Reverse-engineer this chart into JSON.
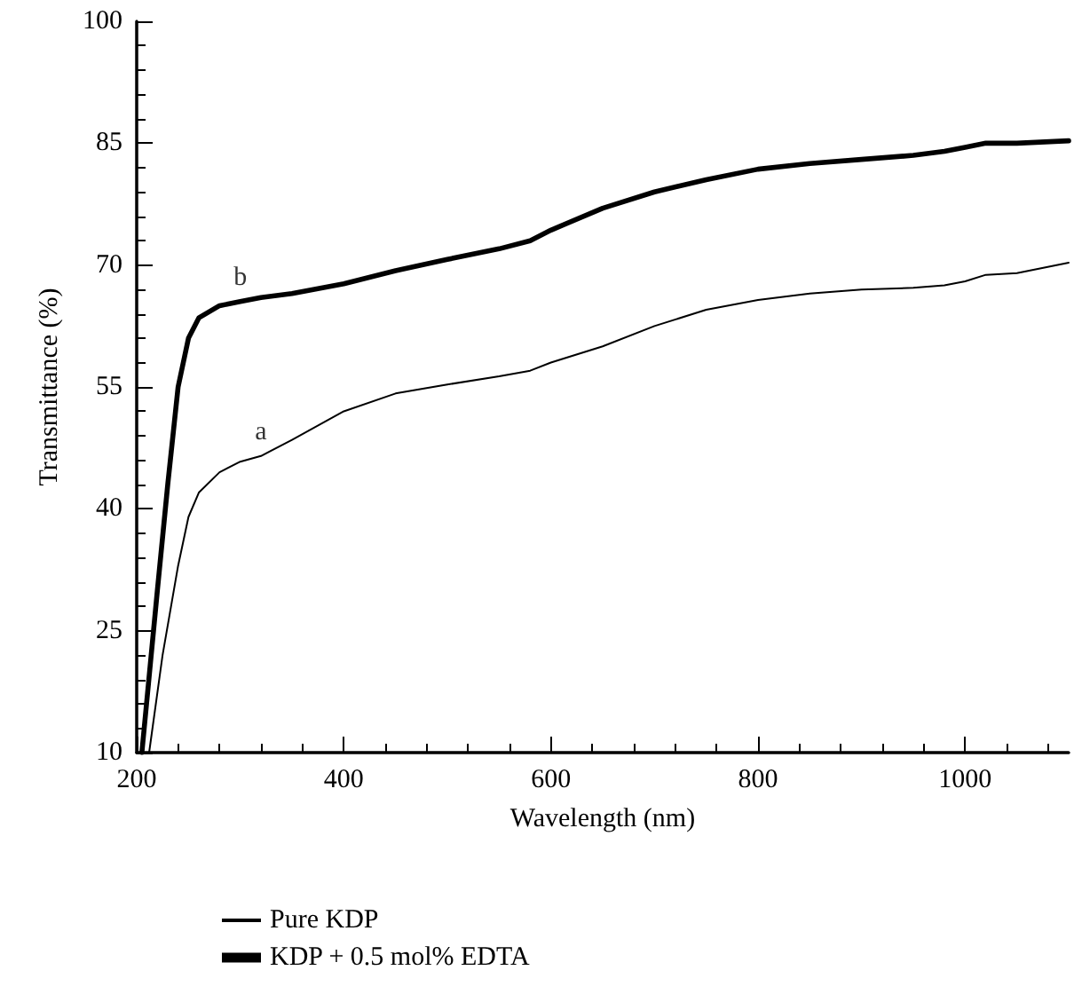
{
  "chart_data": {
    "type": "line",
    "xlabel": "Wavelength (nm)",
    "ylabel": "Transmittance (%)",
    "xlim": [
      200,
      1100
    ],
    "xticks": [
      200,
      400,
      600,
      800,
      1000
    ],
    "ylim": [
      10,
      100
    ],
    "yticks": [
      10,
      25,
      40,
      55,
      70,
      85,
      100
    ],
    "grid": false,
    "legend": "bottom",
    "marker": "none",
    "annotations": [
      "a",
      "b"
    ],
    "series": [
      {
        "name": "Pure KDP",
        "color": "#000000",
        "x": [
          212,
          225,
          240,
          250,
          260,
          280,
          300,
          320,
          350,
          400,
          450,
          500,
          550,
          580,
          600,
          650,
          700,
          750,
          800,
          850,
          900,
          950,
          980,
          1000,
          1020,
          1050,
          1100
        ],
        "values": [
          10,
          22,
          33,
          39,
          42,
          44.5,
          45.8,
          46.5,
          48.5,
          52,
          54.2,
          55.3,
          56.3,
          57,
          58,
          60,
          62.5,
          64.5,
          65.7,
          66.5,
          67,
          67.2,
          67.5,
          68,
          68.8,
          69,
          70.3
        ]
      },
      {
        "name": "KDP + 0.5 mol% EDTA",
        "color": "#000000",
        "x": [
          205,
          220,
          230,
          240,
          250,
          260,
          280,
          300,
          320,
          350,
          400,
          450,
          500,
          550,
          580,
          600,
          650,
          700,
          750,
          800,
          850,
          900,
          950,
          980,
          1000,
          1020,
          1050,
          1100
        ],
        "values": [
          10,
          30,
          43,
          55,
          61,
          63.5,
          65,
          65.5,
          66,
          66.5,
          67.7,
          69.3,
          70.7,
          72,
          73,
          74.3,
          77,
          79,
          80.5,
          81.8,
          82.5,
          83,
          83.5,
          84,
          84.5,
          85,
          85,
          85.3
        ]
      }
    ]
  }
}
